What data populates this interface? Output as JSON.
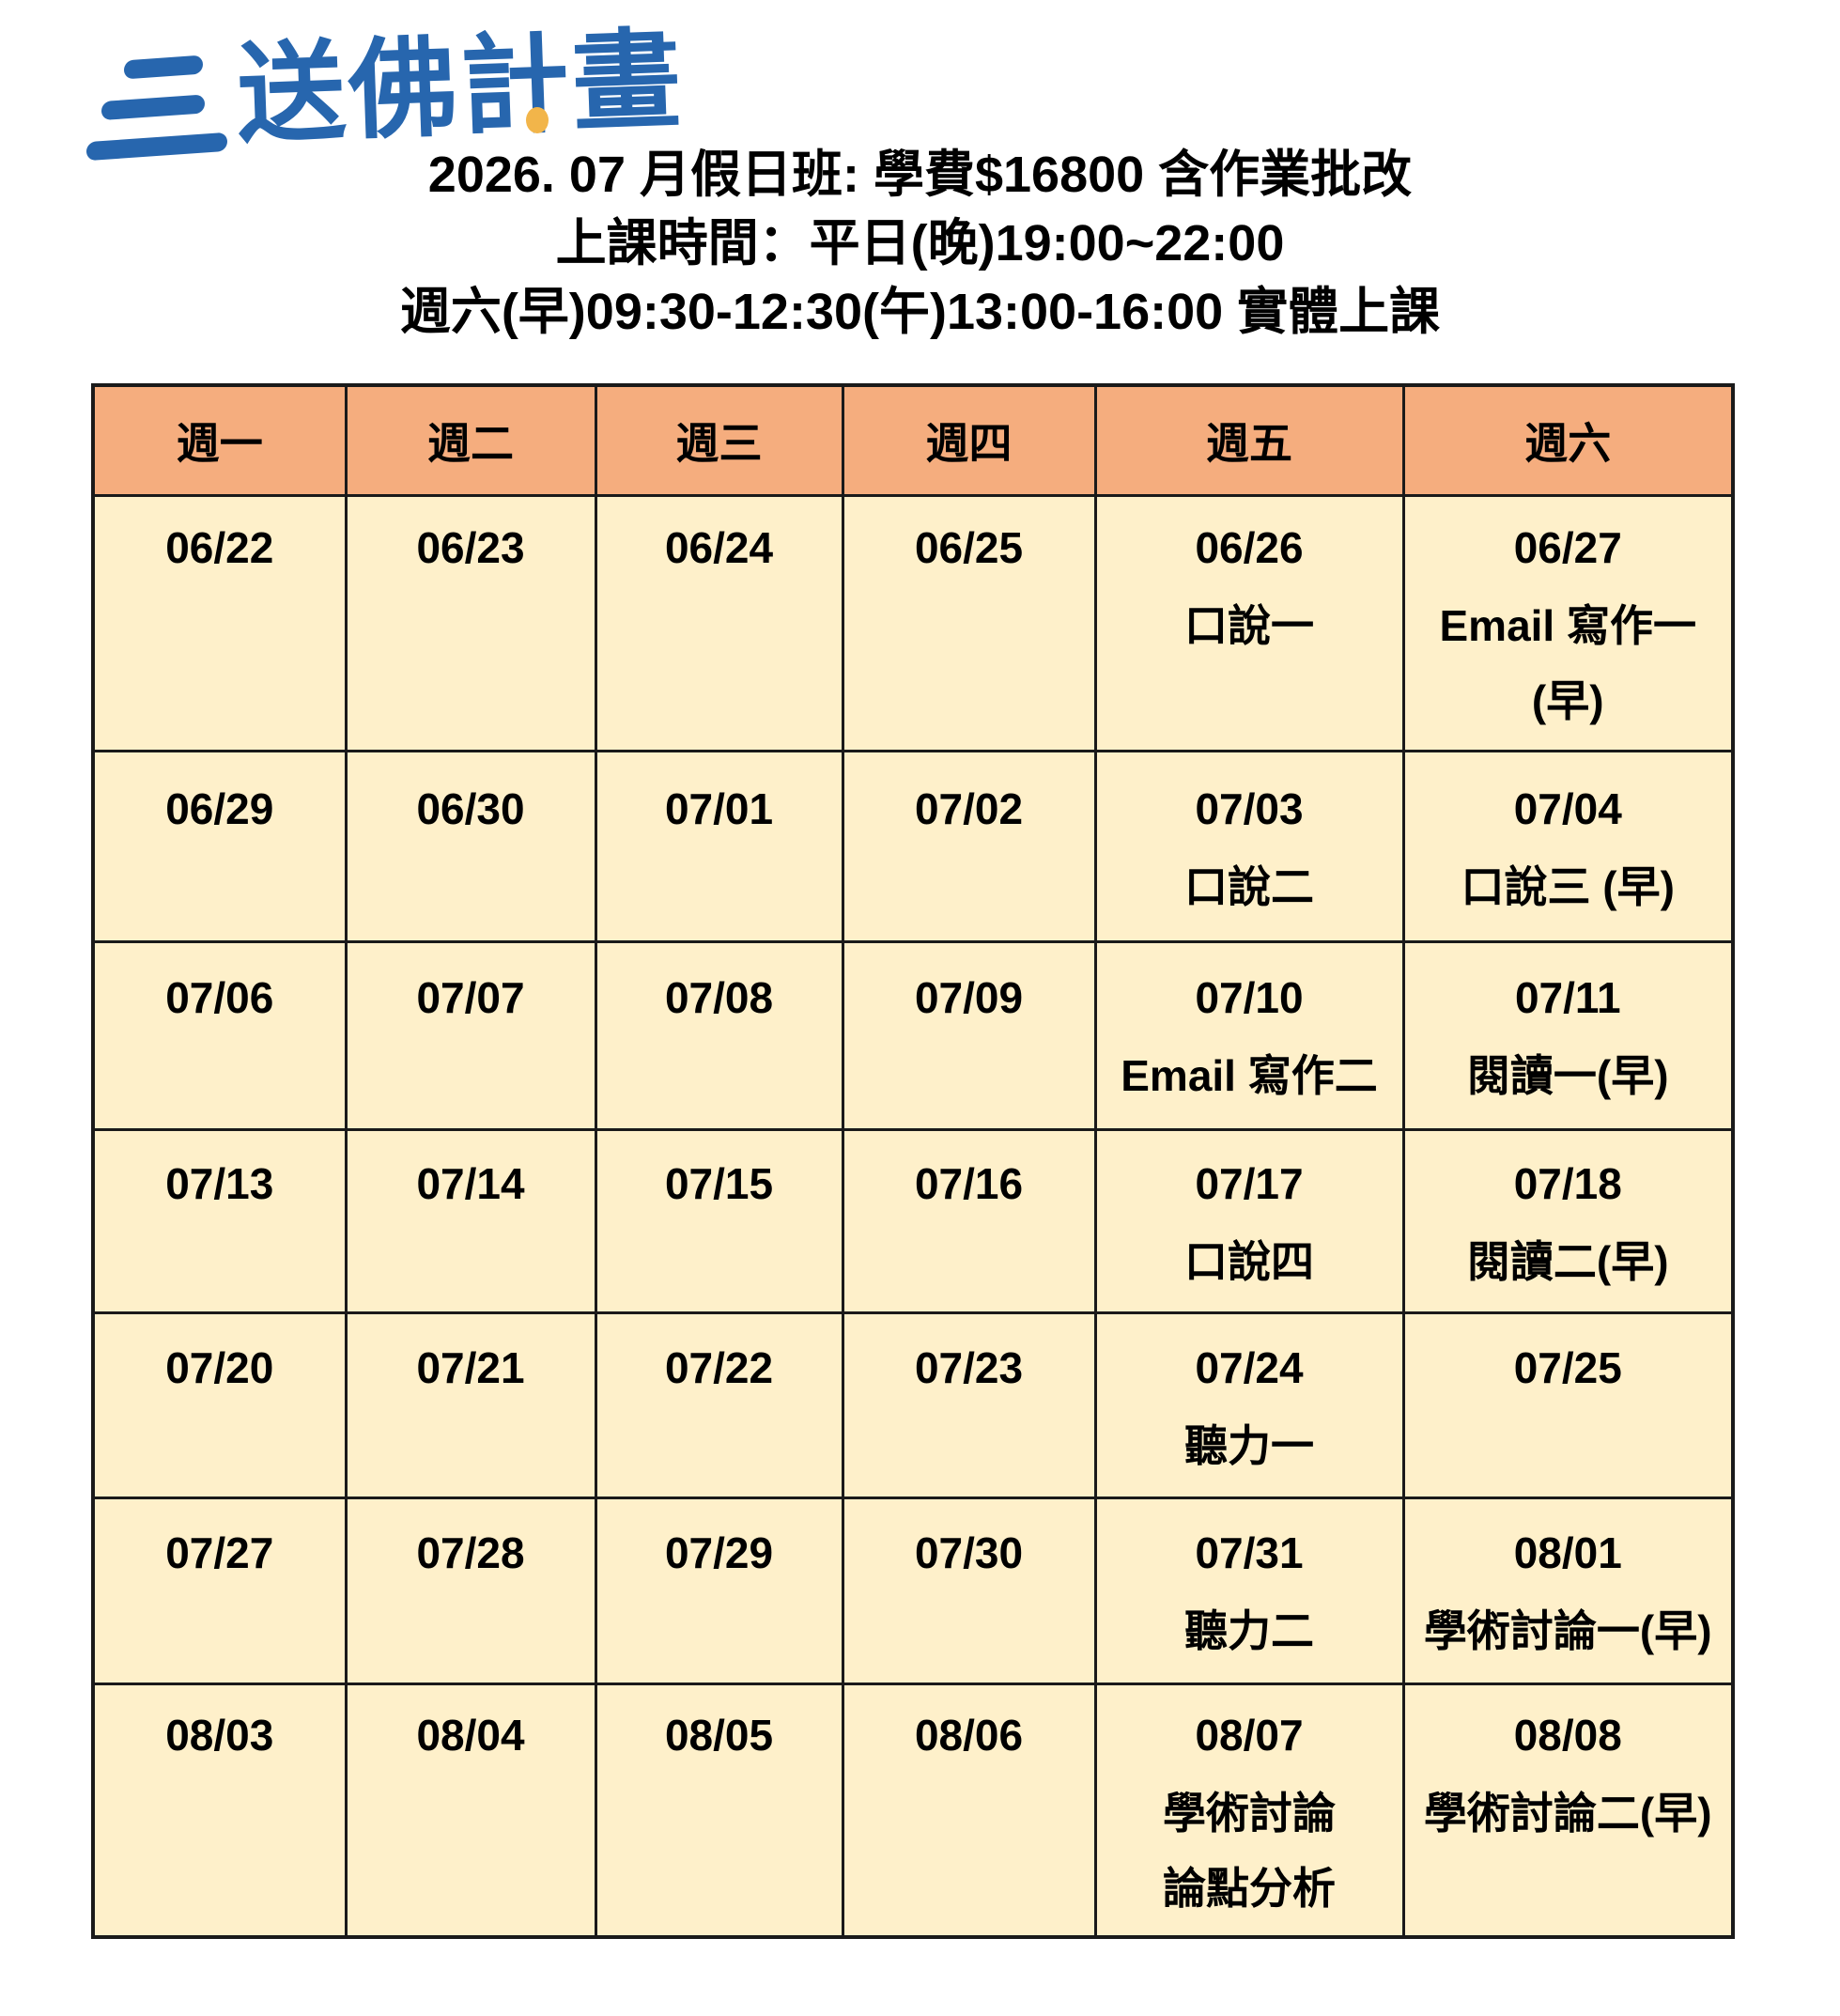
{
  "colors": {
    "logo_blue": "#2766AE",
    "dot_yellow": "#F2B54A",
    "header_bg": "#F5AD7E",
    "cell_bg": "#FEF0CA",
    "border": "#1A1A1A"
  },
  "logo": {
    "text": "送佛計畫"
  },
  "heading": {
    "line1": "2026. 07 月假日班: 學費$16800 含作業批改",
    "line2": "上課時間：平日(晚)19:00~22:00",
    "line3": "週六(早)09:30-12:30(午)13:00-16:00 實體上課"
  },
  "calendar": {
    "day_headers": [
      "週一",
      "週二",
      "週三",
      "週四",
      "週五",
      "週六"
    ],
    "rows": [
      {
        "slots": 3,
        "cells": [
          {
            "lines": [
              "06/22"
            ]
          },
          {
            "lines": [
              "06/23"
            ]
          },
          {
            "lines": [
              "06/24"
            ]
          },
          {
            "lines": [
              "06/25"
            ]
          },
          {
            "lines": [
              "06/26",
              "口說一"
            ]
          },
          {
            "lines": [
              "06/27",
              "Email 寫作一",
              "(早)"
            ]
          }
        ]
      },
      {
        "slots": 2,
        "cells": [
          {
            "lines": [
              "06/29"
            ]
          },
          {
            "lines": [
              "06/30"
            ]
          },
          {
            "lines": [
              "07/01"
            ]
          },
          {
            "lines": [
              "07/02"
            ]
          },
          {
            "lines": [
              "07/03",
              "口說二"
            ]
          },
          {
            "lines": [
              "07/04",
              "口說三 (早)"
            ]
          }
        ]
      },
      {
        "slots": 2,
        "cells": [
          {
            "lines": [
              "07/06"
            ]
          },
          {
            "lines": [
              "07/07"
            ]
          },
          {
            "lines": [
              "07/08"
            ]
          },
          {
            "lines": [
              "07/09"
            ]
          },
          {
            "lines": [
              "07/10",
              "Email 寫作二"
            ]
          },
          {
            "lines": [
              "07/11",
              "閱讀一(早)"
            ]
          }
        ]
      },
      {
        "slots": 2,
        "cells": [
          {
            "lines": [
              "07/13"
            ]
          },
          {
            "lines": [
              "07/14"
            ]
          },
          {
            "lines": [
              "07/15"
            ]
          },
          {
            "lines": [
              "07/16"
            ]
          },
          {
            "lines": [
              "07/17",
              "口說四"
            ]
          },
          {
            "lines": [
              "07/18",
              "閱讀二(早)"
            ]
          }
        ]
      },
      {
        "slots": 2,
        "cells": [
          {
            "lines": [
              "07/20"
            ]
          },
          {
            "lines": [
              "07/21"
            ]
          },
          {
            "lines": [
              "07/22"
            ]
          },
          {
            "lines": [
              "07/23"
            ]
          },
          {
            "lines": [
              "07/24",
              "聽力一"
            ]
          },
          {
            "lines": [
              "07/25"
            ]
          }
        ]
      },
      {
        "slots": 2,
        "cells": [
          {
            "lines": [
              "07/27"
            ]
          },
          {
            "lines": [
              "07/28"
            ]
          },
          {
            "lines": [
              "07/29"
            ]
          },
          {
            "lines": [
              "07/30"
            ]
          },
          {
            "lines": [
              "07/31",
              "聽力二"
            ]
          },
          {
            "lines": [
              "08/01",
              "學術討論一(早)"
            ]
          }
        ]
      },
      {
        "slots": 3,
        "cells": [
          {
            "lines": [
              "08/03"
            ]
          },
          {
            "lines": [
              "08/04"
            ]
          },
          {
            "lines": [
              "08/05"
            ]
          },
          {
            "lines": [
              "08/06"
            ]
          },
          {
            "lines": [
              "08/07",
              "學術討論",
              "論點分析"
            ]
          },
          {
            "lines": [
              "08/08",
              "學術討論二(早)"
            ]
          }
        ]
      }
    ]
  }
}
